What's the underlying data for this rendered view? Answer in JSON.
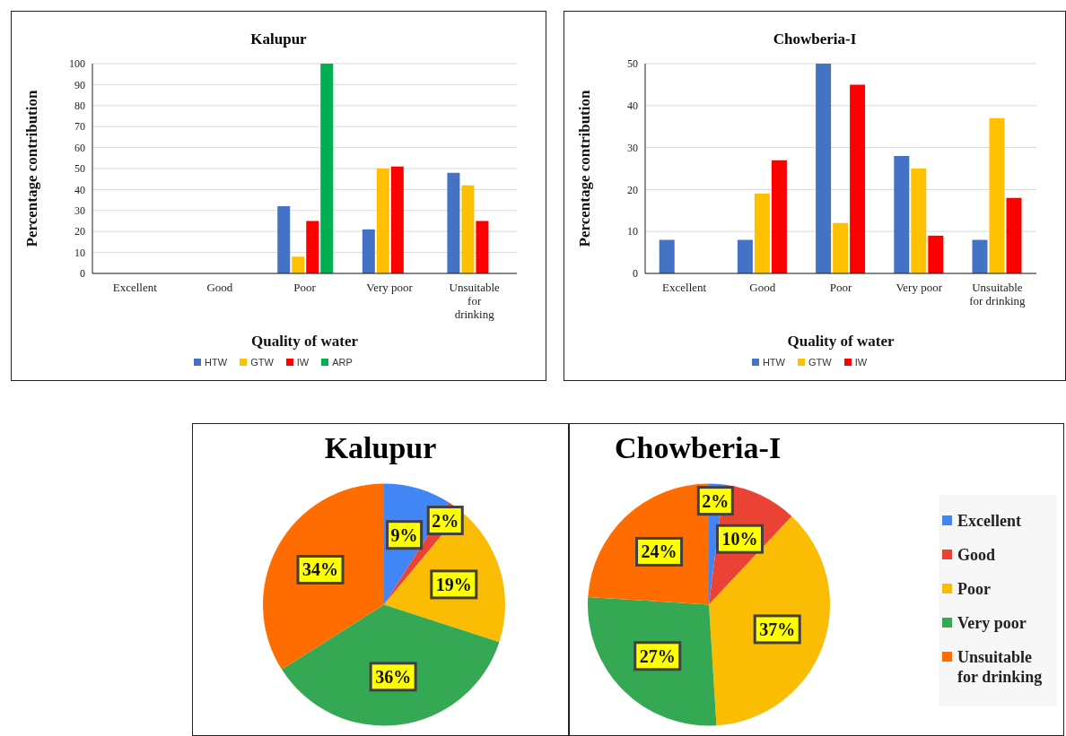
{
  "chart_data": [
    {
      "type": "bar",
      "title": "Kalupur",
      "xlabel": "Quality of water",
      "ylabel": "Percentage contribution",
      "categories": [
        "Excellent",
        "Good",
        "Poor",
        "Very poor",
        "Unsuitable for drinking"
      ],
      "series": [
        {
          "name": "HTW",
          "color": "#4472c4",
          "values": [
            0,
            0,
            32,
            21,
            48
          ]
        },
        {
          "name": "GTW",
          "color": "#ffc000",
          "values": [
            0,
            0,
            8,
            50,
            42
          ]
        },
        {
          "name": "IW",
          "color": "#ff0000",
          "values": [
            0,
            0,
            25,
            51,
            25
          ]
        },
        {
          "name": "ARP",
          "color": "#00b050",
          "values": [
            null,
            null,
            100,
            null,
            null
          ]
        }
      ],
      "ylim": [
        0,
        100
      ],
      "yticks": [
        0,
        10,
        20,
        30,
        40,
        50,
        60,
        70,
        80,
        90,
        100
      ],
      "grid": "y",
      "legend": "bottom"
    },
    {
      "type": "bar",
      "title": "Chowberia-I",
      "xlabel": "Quality of water",
      "ylabel": "Percentage contribution",
      "categories": [
        "Excellent",
        "Good",
        "Poor",
        "Very poor",
        "Unsuitable for drinking"
      ],
      "series": [
        {
          "name": "HTW",
          "color": "#4472c4",
          "values": [
            8,
            8,
            50,
            28,
            8
          ]
        },
        {
          "name": "GTW",
          "color": "#ffc000",
          "values": [
            0,
            19,
            12,
            25,
            37
          ]
        },
        {
          "name": "IW",
          "color": "#ff0000",
          "values": [
            0,
            27,
            45,
            9,
            18
          ]
        }
      ],
      "ylim": [
        0,
        50
      ],
      "yticks": [
        0,
        10,
        20,
        30,
        40,
        50
      ],
      "grid": "y",
      "legend": "bottom"
    },
    {
      "type": "pie",
      "title": "Kalupur",
      "categories": [
        null,
        null,
        null,
        null,
        null
      ],
      "values": [
        9,
        2,
        19,
        36,
        34
      ],
      "value_labels": [
        "9%",
        "2%",
        "19%",
        "36%",
        "34%"
      ],
      "colors": [
        "#4285f4",
        "#ea4335",
        "#fbbc04",
        "#34a853",
        "#ff6d01"
      ]
    },
    {
      "type": "pie",
      "title": "Chowberia-I",
      "categories": [
        "Excellent",
        "Good",
        "Poor",
        "Very poor",
        "Unsuitable for drinking"
      ],
      "values": [
        2,
        10,
        37,
        27,
        24
      ],
      "value_labels": [
        "2%",
        "10%",
        "37%",
        "27%",
        "24%"
      ],
      "colors": [
        "#4285f4",
        "#ea4335",
        "#fbbc04",
        "#34a853",
        "#ff6d01"
      ],
      "legend": "right"
    }
  ]
}
